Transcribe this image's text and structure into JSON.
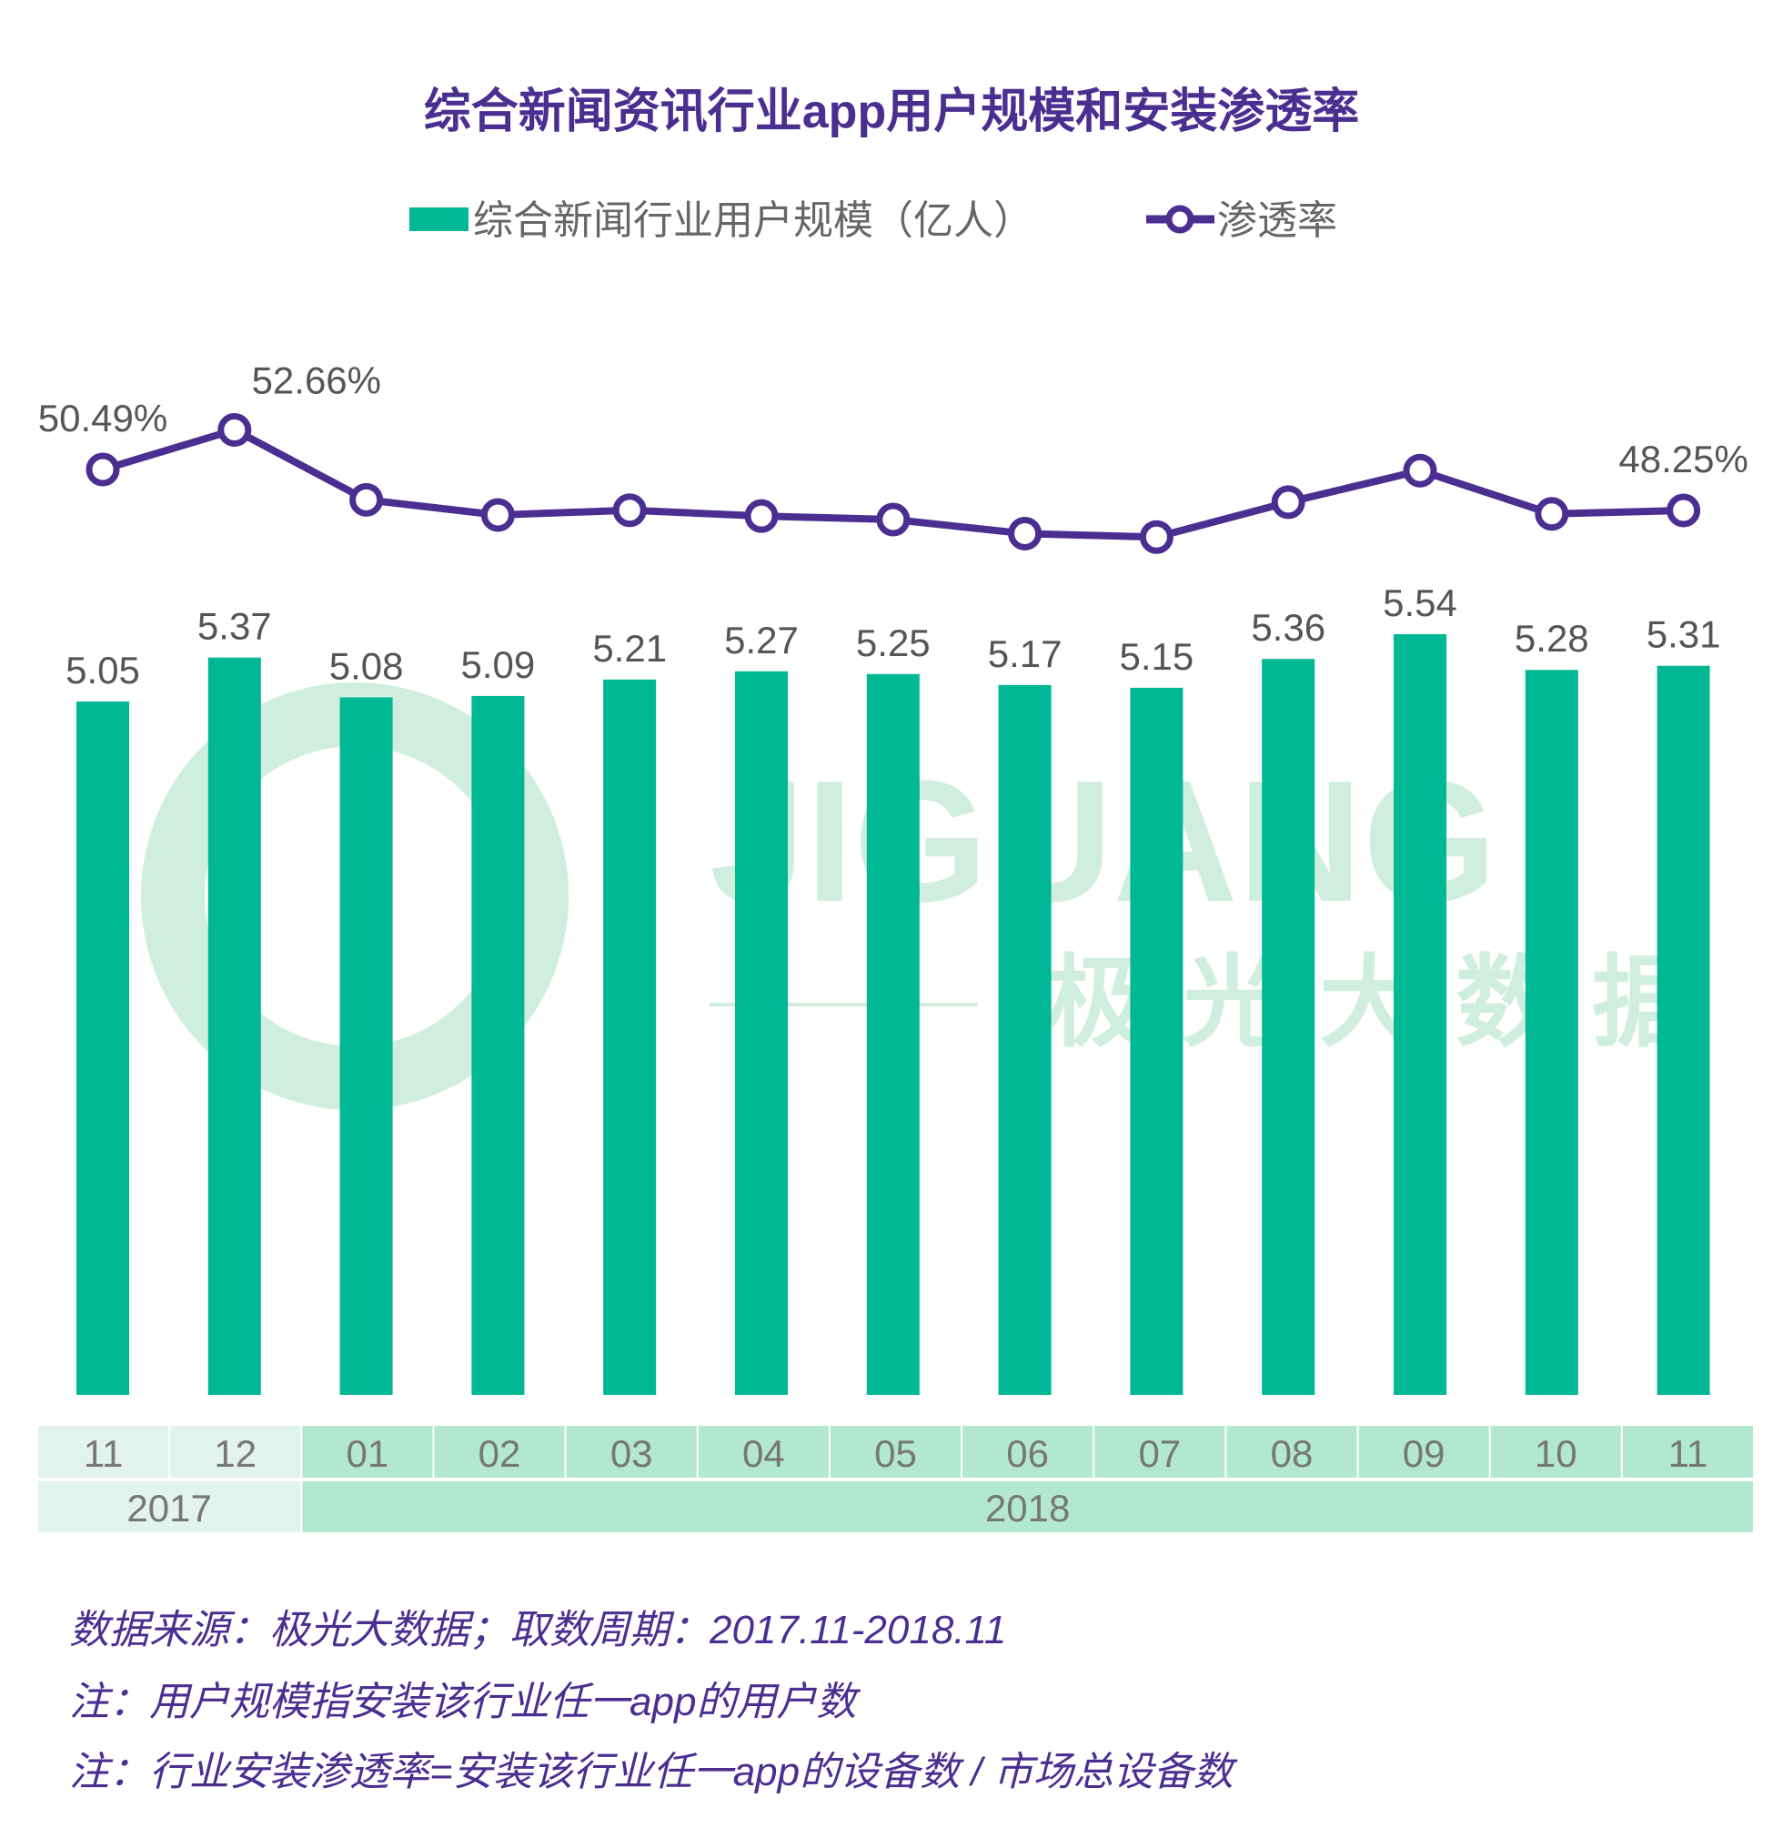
{
  "chart_data": {
    "type": "bar+line",
    "title": "综合新闻资讯行业app用户规模和安装渗透率",
    "categories": [
      "11",
      "12",
      "01",
      "02",
      "03",
      "04",
      "05",
      "06",
      "07",
      "08",
      "09",
      "10",
      "11"
    ],
    "years": [
      {
        "label": "2017",
        "span": 2
      },
      {
        "label": "2018",
        "span": 11
      }
    ],
    "series": [
      {
        "name": "综合新闻行业用户规模（亿人）",
        "type": "bar",
        "color": "#00b894",
        "values": [
          5.05,
          5.37,
          5.08,
          5.09,
          5.21,
          5.27,
          5.25,
          5.17,
          5.15,
          5.36,
          5.54,
          5.28,
          5.31
        ],
        "labels": [
          "5.05",
          "5.37",
          "5.08",
          "5.09",
          "5.21",
          "5.27",
          "5.25",
          "5.17",
          "5.15",
          "5.36",
          "5.54",
          "5.28",
          "5.31"
        ]
      },
      {
        "name": "渗透率",
        "type": "line",
        "color": "#4a2f91",
        "values": [
          50.49,
          52.66,
          48.83,
          48.0,
          48.26,
          47.94,
          47.75,
          46.98,
          46.79,
          48.7,
          50.43,
          48.06,
          48.25
        ],
        "labels": [
          "50.49%",
          "52.66%",
          "",
          "",
          "",
          "",
          "",
          "",
          "",
          "",
          "",
          "",
          "48.25%"
        ]
      }
    ],
    "legend_placement": "top-center",
    "grid": false
  },
  "watermark": {
    "latin": "JIGUANG",
    "chinese": "极光大数据"
  },
  "notes": [
    "数据来源：极光大数据；取数周期：2017.11-2018.11",
    "注：用户规模指安装该行业任一app的用户数",
    "注：行业安装渗透率=安装该行业任一app的设备数 / 市场总设备数"
  ],
  "colors": {
    "bar": "#00b894",
    "line": "#4a2f91",
    "cat2017": "#e2f2ee",
    "cat2018": "#b2e8cf"
  }
}
